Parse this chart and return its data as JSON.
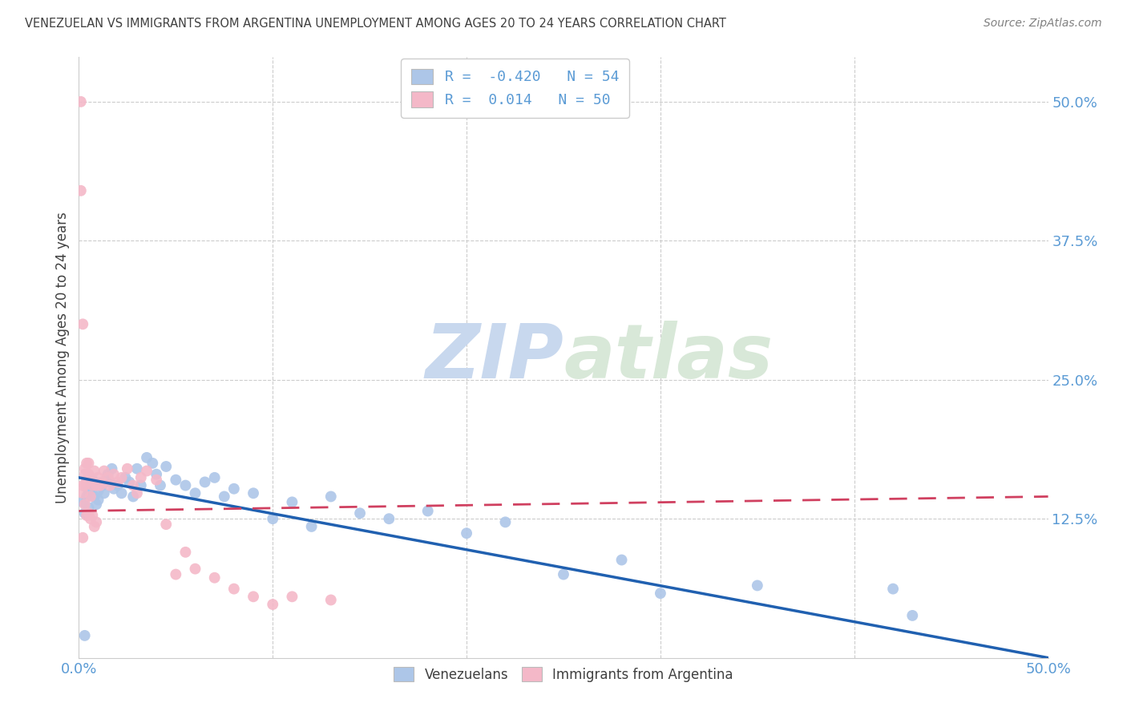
{
  "title": "VENEZUELAN VS IMMIGRANTS FROM ARGENTINA UNEMPLOYMENT AMONG AGES 20 TO 24 YEARS CORRELATION CHART",
  "source": "Source: ZipAtlas.com",
  "ylabel": "Unemployment Among Ages 20 to 24 years",
  "right_yticks": [
    "50.0%",
    "37.5%",
    "25.0%",
    "12.5%"
  ],
  "right_ytick_vals": [
    0.5,
    0.375,
    0.25,
    0.125
  ],
  "xlim": [
    0.0,
    0.5
  ],
  "ylim": [
    0.0,
    0.54
  ],
  "blue_color": "#adc6e8",
  "blue_line_color": "#2060b0",
  "pink_color": "#f4b8c8",
  "pink_line_color": "#d04060",
  "blue_R": -0.42,
  "blue_N": 54,
  "pink_R": 0.014,
  "pink_N": 50,
  "watermark_zip": "ZIP",
  "watermark_atlas": "atlas",
  "grid_color": "#cccccc",
  "background_color": "#ffffff",
  "title_color": "#404040",
  "axis_color": "#5b9bd5",
  "blue_scatter_x": [
    0.002,
    0.003,
    0.004,
    0.005,
    0.005,
    0.006,
    0.007,
    0.008,
    0.009,
    0.01,
    0.01,
    0.012,
    0.013,
    0.014,
    0.015,
    0.016,
    0.017,
    0.018,
    0.02,
    0.022,
    0.024,
    0.026,
    0.028,
    0.03,
    0.032,
    0.035,
    0.038,
    0.04,
    0.042,
    0.045,
    0.05,
    0.055,
    0.06,
    0.065,
    0.07,
    0.075,
    0.08,
    0.09,
    0.1,
    0.11,
    0.12,
    0.13,
    0.145,
    0.16,
    0.18,
    0.2,
    0.22,
    0.25,
    0.28,
    0.3,
    0.35,
    0.42,
    0.43,
    0.003
  ],
  "blue_scatter_y": [
    0.14,
    0.13,
    0.145,
    0.135,
    0.15,
    0.155,
    0.16,
    0.145,
    0.138,
    0.15,
    0.142,
    0.155,
    0.148,
    0.16,
    0.165,
    0.158,
    0.17,
    0.152,
    0.155,
    0.148,
    0.162,
    0.158,
    0.145,
    0.17,
    0.155,
    0.18,
    0.175,
    0.165,
    0.155,
    0.172,
    0.16,
    0.155,
    0.148,
    0.158,
    0.162,
    0.145,
    0.152,
    0.148,
    0.125,
    0.14,
    0.118,
    0.145,
    0.13,
    0.125,
    0.132,
    0.112,
    0.122,
    0.075,
    0.088,
    0.058,
    0.065,
    0.062,
    0.038,
    0.02
  ],
  "pink_scatter_x": [
    0.001,
    0.001,
    0.002,
    0.002,
    0.003,
    0.003,
    0.004,
    0.004,
    0.005,
    0.005,
    0.006,
    0.006,
    0.007,
    0.008,
    0.009,
    0.01,
    0.011,
    0.012,
    0.013,
    0.015,
    0.016,
    0.018,
    0.02,
    0.022,
    0.025,
    0.028,
    0.03,
    0.032,
    0.035,
    0.04,
    0.045,
    0.05,
    0.055,
    0.06,
    0.07,
    0.08,
    0.09,
    0.1,
    0.11,
    0.13,
    0.002,
    0.003,
    0.003,
    0.004,
    0.005,
    0.006,
    0.007,
    0.008,
    0.009,
    0.002
  ],
  "pink_scatter_y": [
    0.5,
    0.42,
    0.3,
    0.155,
    0.165,
    0.17,
    0.16,
    0.175,
    0.175,
    0.165,
    0.145,
    0.16,
    0.155,
    0.168,
    0.155,
    0.162,
    0.155,
    0.158,
    0.168,
    0.162,
    0.155,
    0.165,
    0.158,
    0.162,
    0.17,
    0.155,
    0.148,
    0.162,
    0.168,
    0.16,
    0.12,
    0.075,
    0.095,
    0.08,
    0.072,
    0.062,
    0.055,
    0.048,
    0.055,
    0.052,
    0.148,
    0.138,
    0.155,
    0.128,
    0.13,
    0.125,
    0.128,
    0.118,
    0.122,
    0.108
  ],
  "blue_line_y_start": 0.162,
  "blue_line_y_end": 0.0,
  "pink_line_y_start": 0.132,
  "pink_line_y_end": 0.145
}
